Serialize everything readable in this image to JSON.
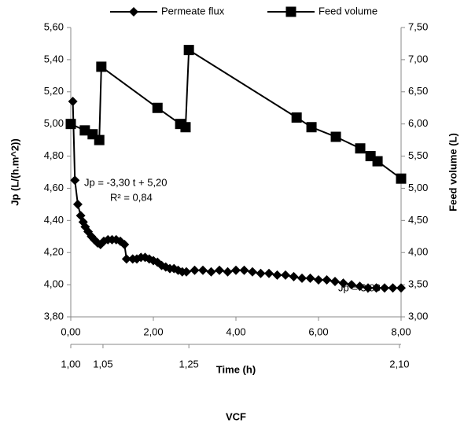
{
  "chart_data": {
    "type": "line",
    "legend_position": "top",
    "xlabel": "Time (h)",
    "ylabel": "Jp (L/(h.m^2))",
    "y2label": "Feed volume (L)",
    "xlim": [
      0,
      8
    ],
    "xticks": [
      {
        "value": 0,
        "label": "0,00"
      },
      {
        "value": 2,
        "label": "2,00"
      },
      {
        "value": 4,
        "label": "4,00"
      },
      {
        "value": 6,
        "label": "6,00"
      },
      {
        "value": 8,
        "label": "8,00"
      }
    ],
    "ylim": [
      3.8,
      5.6
    ],
    "yticks": [
      {
        "value": 3.8,
        "label": "3,80"
      },
      {
        "value": 4.0,
        "label": "4,00"
      },
      {
        "value": 4.2,
        "label": "4,20"
      },
      {
        "value": 4.4,
        "label": "4,40"
      },
      {
        "value": 4.6,
        "label": "4,60"
      },
      {
        "value": 4.8,
        "label": "4,80"
      },
      {
        "value": 5.0,
        "label": "5,00"
      },
      {
        "value": 5.2,
        "label": "5,20"
      },
      {
        "value": 5.4,
        "label": "5,40"
      },
      {
        "value": 5.6,
        "label": "5,60"
      }
    ],
    "y2lim": [
      3,
      7.5
    ],
    "y2ticks": [
      {
        "value": 3.0,
        "label": "3,00"
      },
      {
        "value": 3.5,
        "label": "3,50"
      },
      {
        "value": 4.0,
        "label": "4,00"
      },
      {
        "value": 4.5,
        "label": "4,50"
      },
      {
        "value": 5.0,
        "label": "5,00"
      },
      {
        "value": 5.5,
        "label": "5,50"
      },
      {
        "value": 6.0,
        "label": "6,00"
      },
      {
        "value": 6.5,
        "label": "6,50"
      },
      {
        "value": 7.0,
        "label": "7,00"
      },
      {
        "value": 7.5,
        "label": "7,50"
      }
    ],
    "series": [
      {
        "name": "Permeate flux",
        "color": "#000000",
        "marker": "diamond",
        "x": [
          0.05,
          0.1,
          0.17,
          0.24,
          0.3,
          0.35,
          0.42,
          0.5,
          0.57,
          0.65,
          0.72,
          0.8,
          0.9,
          1.0,
          1.1,
          1.2,
          1.3,
          1.35,
          1.5,
          1.6,
          1.7,
          1.8,
          1.9,
          2.0,
          2.1,
          2.2,
          2.3,
          2.4,
          2.5,
          2.6,
          2.7,
          2.8,
          3.0,
          3.2,
          3.4,
          3.6,
          3.8,
          4.0,
          4.2,
          4.4,
          4.6,
          4.8,
          5.0,
          5.2,
          5.4,
          5.6,
          5.8,
          6.0,
          6.2,
          6.4,
          6.6,
          6.8,
          7.0,
          7.2,
          7.4,
          7.6,
          7.8,
          8.0
        ],
        "values": [
          5.14,
          4.65,
          4.5,
          4.43,
          4.39,
          4.36,
          4.33,
          4.3,
          4.28,
          4.26,
          4.25,
          4.27,
          4.28,
          4.28,
          4.28,
          4.27,
          4.25,
          4.16,
          4.16,
          4.16,
          4.17,
          4.17,
          4.16,
          4.15,
          4.14,
          4.12,
          4.11,
          4.1,
          4.1,
          4.09,
          4.08,
          4.08,
          4.09,
          4.09,
          4.08,
          4.09,
          4.08,
          4.09,
          4.09,
          4.08,
          4.07,
          4.07,
          4.06,
          4.06,
          4.05,
          4.04,
          4.04,
          4.03,
          4.03,
          4.02,
          4.01,
          4.0,
          3.99,
          3.98,
          3.98,
          3.98,
          3.98,
          3.98
        ]
      },
      {
        "name": "Feed volume",
        "color": "#000000",
        "marker": "square",
        "axis": "y2",
        "x": [
          0.0,
          0.34,
          0.53,
          0.69,
          0.74,
          2.1,
          2.65,
          2.78,
          2.86,
          5.47,
          5.83,
          6.42,
          7.01,
          7.26,
          7.43,
          8.0
        ],
        "values": [
          6.0,
          5.9,
          5.84,
          5.75,
          6.89,
          6.25,
          6.0,
          5.95,
          7.15,
          6.1,
          5.95,
          5.8,
          5.62,
          5.5,
          5.42,
          5.15
        ]
      }
    ],
    "annotations": [
      "Jp = -3,30 t + 5,20",
      "R² = 0,84",
      "Jp  = 3,98"
    ],
    "secondary_xaxis": {
      "label": "VCF",
      "ticks": [
        {
          "value": 1.0,
          "label": "1,00",
          "time": 0
        },
        {
          "value": 1.05,
          "label": "1,05",
          "time": 0.78
        },
        {
          "value": 1.25,
          "label": "1,25",
          "time": 2.86
        },
        {
          "value": 2.1,
          "label": "2,10",
          "time": 7.96
        }
      ]
    }
  }
}
